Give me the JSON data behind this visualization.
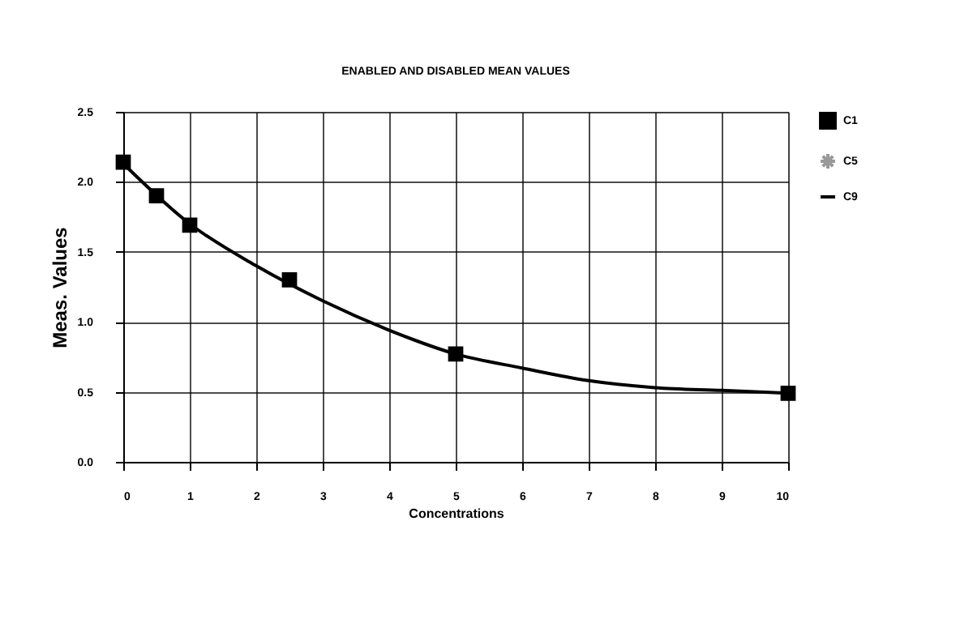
{
  "chart_data": {
    "type": "scatter",
    "title": "ENABLED AND DISABLED MEAN VALUES",
    "xlabel": "Concentrations",
    "ylabel": "Meas. Values",
    "series": [
      {
        "name": "C1",
        "color": "#000000",
        "marker": "square",
        "x": [
          0,
          0.5,
          1,
          2.5,
          5,
          10
        ],
        "values": [
          2.14,
          1.9,
          1.69,
          1.3,
          0.77,
          0.49
        ]
      },
      {
        "name": "C5",
        "color": "#999999",
        "marker": "star"
      },
      {
        "name": "C9",
        "type": "line",
        "color": "#000000",
        "marker": "none",
        "line_style": "solid",
        "x": [
          0,
          1,
          2,
          3,
          4,
          5,
          6,
          7,
          8,
          9,
          10
        ],
        "values": [
          2.13,
          1.7,
          1.4,
          1.15,
          0.94,
          0.77,
          0.67,
          0.58,
          0.53,
          0.51,
          0.49
        ]
      }
    ],
    "xlim": [
      0,
      10
    ],
    "xticks": [
      0,
      1,
      2,
      3,
      4,
      5,
      6,
      7,
      8,
      9,
      10
    ],
    "ylim": [
      0,
      2.5
    ],
    "yticks": [
      {
        "value": 0,
        "label": "0.0"
      },
      {
        "value": 0.5,
        "label": "0.5"
      },
      {
        "value": 1,
        "label": "1.0"
      },
      {
        "value": 1.5,
        "label": "1.5"
      },
      {
        "value": 2,
        "label": "2.0"
      },
      {
        "value": 2.5,
        "label": "2.5"
      }
    ],
    "grid": true,
    "legend": "right"
  }
}
